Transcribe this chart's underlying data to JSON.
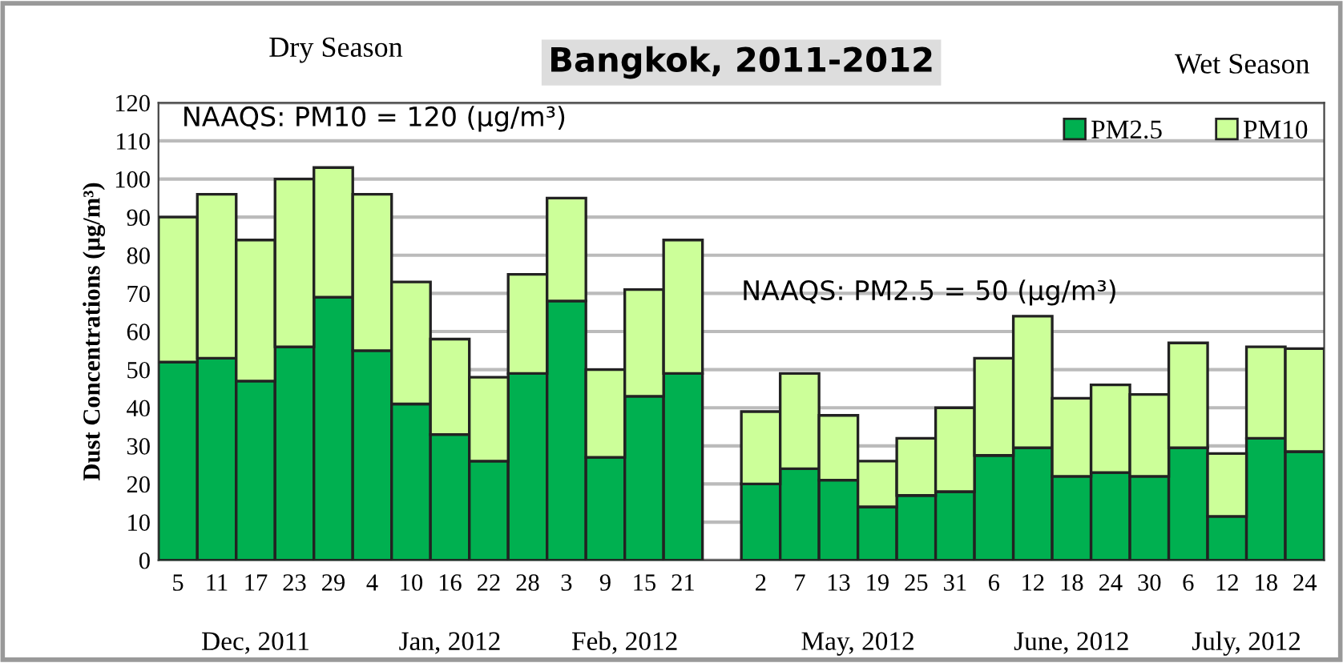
{
  "chart_data": {
    "type": "bar",
    "title": "Bangkok, 2011-2012",
    "ylabel": "Dust Concentrations (µg/m³)",
    "categories": [
      "5",
      "11",
      "17",
      "23",
      "29",
      "4",
      "10",
      "16",
      "22",
      "28",
      "3",
      "9",
      "15",
      "21",
      null,
      "2",
      "7",
      "13",
      "19",
      "25",
      "31",
      "6",
      "12",
      "18",
      "24",
      "30",
      "6",
      "12",
      "18",
      "24"
    ],
    "stacked": true,
    "series": [
      {
        "name": "PM2.5",
        "color": "#00b050",
        "values": [
          52,
          53,
          47,
          56,
          69,
          55,
          41,
          33,
          26,
          49,
          68,
          27,
          43,
          49,
          null,
          20,
          24,
          21,
          14,
          17,
          18,
          27.5,
          29.5,
          22,
          23,
          22,
          29.5,
          11.5,
          32,
          28.5
        ]
      },
      {
        "name": "PM10",
        "color": "#ccff99",
        "values": [
          38,
          43,
          37,
          44,
          34,
          41,
          32,
          25,
          22,
          26,
          27,
          23,
          28,
          35,
          null,
          19,
          25,
          17,
          12,
          15,
          22,
          25.5,
          34.5,
          20.5,
          23,
          21.5,
          27.5,
          16.5,
          24,
          27
        ]
      }
    ],
    "ylim": [
      0,
      120
    ],
    "yticks": [
      0,
      10,
      20,
      30,
      40,
      50,
      60,
      70,
      80,
      90,
      100,
      110,
      120
    ],
    "grid": "y",
    "legend": "top right",
    "annotations": [
      "Dry Season",
      "Wet Season",
      "NAAQS: PM10 = 120 (µg/m³)",
      "NAAQS: PM2.5 = 50 (µg/m³)",
      "Dec, 2011",
      "Jan, 2012",
      "Feb, 2012",
      "May, 2012",
      "June, 2012",
      "July, 2012"
    ]
  }
}
